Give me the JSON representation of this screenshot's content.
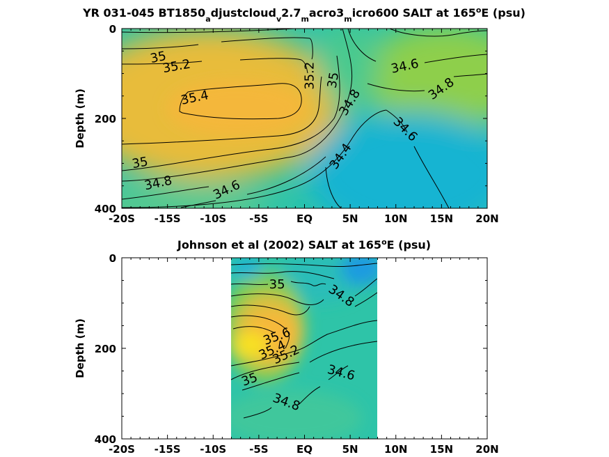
{
  "chart_data": [
    {
      "type": "heatmap",
      "title": {
        "parts": [
          {
            "t": "YR 031-045 BT1850"
          },
          {
            "t": "a",
            "sub": true
          },
          {
            "t": "djustcloud"
          },
          {
            "t": "v",
            "sub": true
          },
          {
            "t": "2.7"
          },
          {
            "t": "m",
            "sub": true
          },
          {
            "t": "acro3"
          },
          {
            "t": "m",
            "sub": true
          },
          {
            "t": "icro600 SALT at 165"
          },
          {
            "t": "o",
            "sup": true
          },
          {
            "t": "E (psu)"
          }
        ]
      },
      "ylabel": "Depth (m)",
      "xlim": [
        -20,
        20
      ],
      "ylim": [
        0,
        400
      ],
      "xticks": [
        -20,
        -15,
        -10,
        -5,
        0,
        5,
        10,
        15,
        20
      ],
      "xtick_labels": [
        "-20S",
        "-15S",
        "-10S",
        "-5S",
        "EQ",
        "5N",
        "10N",
        "15N",
        "20N"
      ],
      "yticks": [
        0,
        200,
        400
      ],
      "ytick_labels": [
        "0",
        "200",
        "400"
      ],
      "colormap": [
        "#1e90e6",
        "#1fb4d6",
        "#2ec4a8",
        "#7fcc55",
        "#b8c43a",
        "#f2b23a",
        "#f8ba3a",
        "#f8e020"
      ],
      "value_range": [
        34.2,
        35.8
      ],
      "contour_labels": [
        {
          "text": "35",
          "x": -16,
          "y": 65,
          "angle": -12
        },
        {
          "text": "35.2",
          "x": -14,
          "y": 85,
          "angle": -10
        },
        {
          "text": "35.4",
          "x": -12,
          "y": 155,
          "angle": -12
        },
        {
          "text": "35.2",
          "x": 0.6,
          "y": 105,
          "angle": -90
        },
        {
          "text": "35",
          "x": 3.2,
          "y": 115,
          "angle": -80
        },
        {
          "text": "34.8",
          "x": 5.0,
          "y": 165,
          "angle": -58
        },
        {
          "text": "34.6",
          "x": 11.0,
          "y": 85,
          "angle": -12
        },
        {
          "text": "34.8",
          "x": 15.0,
          "y": 135,
          "angle": -35
        },
        {
          "text": "34.6",
          "x": 11.0,
          "y": 225,
          "angle": 45
        },
        {
          "text": "34.4",
          "x": 4.0,
          "y": 285,
          "angle": -55
        },
        {
          "text": "35",
          "x": -18.0,
          "y": 300,
          "angle": -10
        },
        {
          "text": "34.8",
          "x": -16.0,
          "y": 345,
          "angle": -12
        },
        {
          "text": "34.6",
          "x": -8.5,
          "y": 360,
          "angle": -25
        }
      ]
    },
    {
      "type": "heatmap",
      "title": {
        "parts": [
          {
            "t": "Johnson et al (2002) SALT at 165"
          },
          {
            "t": "o",
            "sup": true
          },
          {
            "t": "E (psu)"
          }
        ]
      },
      "ylabel": "Depth (m)",
      "xlim": [
        -20,
        20
      ],
      "ylim": [
        0,
        400
      ],
      "data_xrange": [
        -8,
        8
      ],
      "xticks": [
        -20,
        -15,
        -10,
        -5,
        0,
        5,
        10,
        15,
        20
      ],
      "xtick_labels": [
        "-20S",
        "-15S",
        "-10S",
        "-5S",
        "EQ",
        "5N",
        "10N",
        "15N",
        "20N"
      ],
      "yticks": [
        0,
        200,
        400
      ],
      "ytick_labels": [
        "0",
        "200",
        "400"
      ],
      "colormap": [
        "#1e90e6",
        "#1fb4d6",
        "#2ec4a8",
        "#7fcc55",
        "#b8c43a",
        "#f2b23a",
        "#f8ba3a",
        "#f8e020"
      ],
      "value_range": [
        34.2,
        35.8
      ],
      "contour_labels": [
        {
          "text": "35",
          "x": -3.0,
          "y": 60,
          "angle": 0
        },
        {
          "text": "34.8",
          "x": 4.0,
          "y": 85,
          "angle": 35
        },
        {
          "text": "35.6",
          "x": -3.0,
          "y": 175,
          "angle": -20
        },
        {
          "text": "35.4",
          "x": -3.5,
          "y": 205,
          "angle": -25
        },
        {
          "text": "35.2",
          "x": -2.0,
          "y": 215,
          "angle": -25
        },
        {
          "text": "34.6",
          "x": 4.0,
          "y": 255,
          "angle": 15
        },
        {
          "text": "35",
          "x": -6.0,
          "y": 270,
          "angle": -20
        },
        {
          "text": "34.8",
          "x": -2.0,
          "y": 320,
          "angle": 20
        }
      ]
    }
  ]
}
